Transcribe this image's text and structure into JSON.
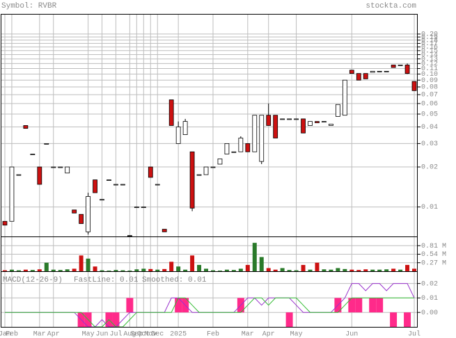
{
  "chart_data": [
    {
      "type": "candlestick",
      "title": "Symbol: RVBR",
      "source": "stockta.com",
      "yscale": "log",
      "grid": true,
      "up_color": "#ffffff",
      "down_color": "#cc1111",
      "categories": [
        "Jan",
        "Feb",
        null,
        null,
        null,
        "Mar",
        null,
        "Apr",
        null,
        null,
        null,
        null,
        "May",
        null,
        "Jun",
        null,
        "Jul",
        null,
        "Aug",
        "Sep",
        "Oct",
        "Nov",
        "Dec",
        null,
        null,
        "2025",
        null,
        null,
        null,
        null,
        "Feb",
        null,
        null,
        null,
        null,
        "Mar",
        null,
        null,
        "Apr",
        null,
        null,
        null,
        "May",
        null,
        null,
        null,
        null,
        null,
        null,
        null,
        "Jun",
        null,
        null,
        null,
        null,
        null,
        null,
        null,
        null,
        "Jul"
      ],
      "open": [
        0.0078,
        0.0078,
        0.0175,
        0.041,
        0.025,
        0.02,
        0.03,
        0.02,
        0.02,
        0.018,
        0.0095,
        0.0088,
        0.0065,
        0.016,
        0.0114,
        0.016,
        0.0148,
        0.0148,
        0.0061,
        0.01,
        0.01,
        0.02,
        0.0148,
        0.0068,
        0.064,
        0.03,
        0.035,
        0.026,
        0.0175,
        0.0175,
        0.02,
        0.021,
        0.025,
        0.026,
        0.026,
        0.03,
        0.026,
        0.022,
        0.049,
        0.049,
        0.046,
        0.046,
        0.046,
        0.046,
        0.041,
        0.044,
        0.044,
        0.041,
        0.048,
        0.049,
        0.107,
        0.101,
        0.101,
        0.103,
        0.105,
        0.105,
        0.117,
        0.117,
        0.117,
        0.088
      ],
      "high": [
        0.0078,
        0.02,
        0.0175,
        0.041,
        0.025,
        0.02,
        0.03,
        0.02,
        0.02,
        0.02,
        0.0095,
        0.0088,
        0.0128,
        0.016,
        0.0114,
        0.016,
        0.0148,
        0.0148,
        0.0061,
        0.01,
        0.01,
        0.02,
        0.0148,
        0.0068,
        0.064,
        0.044,
        0.046,
        0.026,
        0.0175,
        0.02,
        0.02,
        0.023,
        0.03,
        0.026,
        0.034,
        0.03,
        0.049,
        0.049,
        0.06,
        0.049,
        0.046,
        0.046,
        0.046,
        0.046,
        0.044,
        0.044,
        0.044,
        0.042,
        0.059,
        0.09,
        0.107,
        0.101,
        0.101,
        0.105,
        0.105,
        0.105,
        0.117,
        0.117,
        0.12,
        0.088
      ],
      "low": [
        0.0073,
        0.0078,
        0.0175,
        0.039,
        0.025,
        0.0148,
        0.03,
        0.02,
        0.02,
        0.018,
        0.009,
        0.0075,
        0.0062,
        0.0128,
        0.0114,
        0.016,
        0.0148,
        0.0148,
        0.0061,
        0.01,
        0.01,
        0.0167,
        0.0148,
        0.0065,
        0.041,
        0.03,
        0.035,
        0.0093,
        0.0175,
        0.0175,
        0.02,
        0.021,
        0.025,
        0.026,
        0.026,
        0.026,
        0.026,
        0.021,
        0.041,
        0.033,
        0.046,
        0.046,
        0.046,
        0.036,
        0.041,
        0.043,
        0.044,
        0.041,
        0.048,
        0.049,
        0.101,
        0.09,
        0.092,
        0.103,
        0.105,
        0.105,
        0.112,
        0.117,
        0.1,
        0.075
      ],
      "close": [
        0.0073,
        0.02,
        0.0175,
        0.039,
        0.025,
        0.0148,
        0.03,
        0.02,
        0.02,
        0.02,
        0.009,
        0.0075,
        0.012,
        0.0128,
        0.0114,
        0.016,
        0.0148,
        0.0148,
        0.0061,
        0.01,
        0.01,
        0.0167,
        0.0148,
        0.0065,
        0.041,
        0.04,
        0.044,
        0.0098,
        0.0175,
        0.02,
        0.02,
        0.023,
        0.03,
        0.026,
        0.033,
        0.026,
        0.049,
        0.049,
        0.041,
        0.033,
        0.046,
        0.046,
        0.046,
        0.036,
        0.044,
        0.043,
        0.044,
        0.042,
        0.059,
        0.09,
        0.101,
        0.09,
        0.092,
        0.105,
        0.105,
        0.105,
        0.112,
        0.117,
        0.101,
        0.075
      ],
      "ylim": [
        0.006,
        0.28
      ],
      "yticks": [
        0.01,
        0.02,
        0.03,
        0.04,
        0.05,
        0.06,
        0.07,
        0.08,
        0.09,
        {
          "value": 0.1,
          "label": "0.10"
        },
        0.11,
        0.12,
        0.13,
        0.14,
        0.15,
        0.16,
        0.17,
        0.18,
        0.19,
        {
          "value": 0.2,
          "label": "0.20"
        }
      ]
    },
    {
      "type": "bar",
      "up_color": "#2a7a2a",
      "down_color": "#cc1111",
      "grid": true,
      "values": [
        0.03,
        0.05,
        0.03,
        0.05,
        0.04,
        0.06,
        0.27,
        0.05,
        0.04,
        0.06,
        0.08,
        0.5,
        0.4,
        0.15,
        0.03,
        0.02,
        0.04,
        0.03,
        0.02,
        0.06,
        0.08,
        0.07,
        0.05,
        0.07,
        0.3,
        0.15,
        0.05,
        0.5,
        0.2,
        0.08,
        0.03,
        0.02,
        0.05,
        0.04,
        0.08,
        0.2,
        0.9,
        0.45,
        0.1,
        0.05,
        0.1,
        0.04,
        0.03,
        0.2,
        0.05,
        0.27,
        0.06,
        0.05,
        0.1,
        0.07,
        0.05,
        0.04,
        0.06,
        0.05,
        0.05,
        0.06,
        0.08,
        0.05,
        0.2,
        0.08
      ],
      "ylim": [
        0,
        1.08
      ],
      "yticks": [
        {
          "value": 0.27,
          "label": "0.27 M"
        },
        {
          "value": 0.54,
          "label": "0.54 M"
        },
        {
          "value": 0.81,
          "label": "0.81 M"
        }
      ]
    },
    {
      "type": "line",
      "title": "MACD(12-26-9)",
      "grid": true,
      "histogram_color": "#ff2a8a",
      "series": [
        {
          "name": "FastLine: 0.01",
          "color": "#9933cc",
          "values": [
            0,
            0,
            0,
            0,
            0,
            0,
            0,
            0,
            0,
            0,
            0,
            -0.005,
            -0.01,
            -0.01,
            -0.005,
            -0.01,
            -0.01,
            -0.005,
            0,
            0,
            0,
            0,
            0,
            0,
            0.01,
            0.01,
            0.005,
            0,
            0,
            0,
            0,
            0,
            0,
            0,
            0.005,
            0.01,
            0.01,
            0.005,
            0.01,
            0.01,
            0.01,
            0.01,
            0.005,
            0,
            0,
            0,
            0,
            0,
            0.005,
            0.01,
            0.02,
            0.02,
            0.015,
            0.02,
            0.02,
            0.015,
            0.02,
            0.02,
            0.02,
            0.01
          ]
        },
        {
          "name": "Smoothed: 0.01",
          "color": "#33bb33",
          "values": [
            0,
            0,
            0,
            0,
            0,
            0,
            0,
            0,
            0,
            0,
            0,
            0,
            -0.005,
            -0.01,
            -0.01,
            -0.005,
            -0.01,
            -0.01,
            -0.005,
            0,
            0,
            0,
            0,
            0,
            0,
            0.01,
            0.01,
            0.005,
            0,
            0,
            0,
            0,
            0,
            0,
            0,
            0.005,
            0.01,
            0.01,
            0.005,
            0.01,
            0.01,
            0.01,
            0.01,
            0.005,
            0,
            0,
            0,
            0,
            0,
            0.005,
            0.01,
            0.01,
            0.01,
            0.01,
            0.01,
            0.01,
            0.01,
            0.01,
            0.01,
            0.01
          ]
        }
      ],
      "histogram": [
        0,
        0,
        0,
        0,
        0,
        0,
        0,
        0,
        0,
        0,
        0,
        -0.01,
        -0.01,
        0,
        0,
        -0.01,
        -0.01,
        0,
        0.01,
        0,
        0,
        0,
        0,
        0,
        0,
        0.01,
        0.01,
        0,
        0,
        0,
        0,
        0,
        0,
        0,
        0.01,
        0,
        0,
        0,
        0,
        0,
        0,
        -0.01,
        0,
        0,
        0,
        0,
        0,
        0,
        0.01,
        0,
        0.01,
        0.01,
        0,
        0.01,
        0.01,
        0,
        -0.01,
        0,
        -0.01,
        0
      ],
      "ylim": [
        -0.01,
        0.028
      ],
      "yticks": [
        {
          "value": 0,
          "label": "0.00"
        },
        0.01,
        0.02
      ]
    }
  ]
}
